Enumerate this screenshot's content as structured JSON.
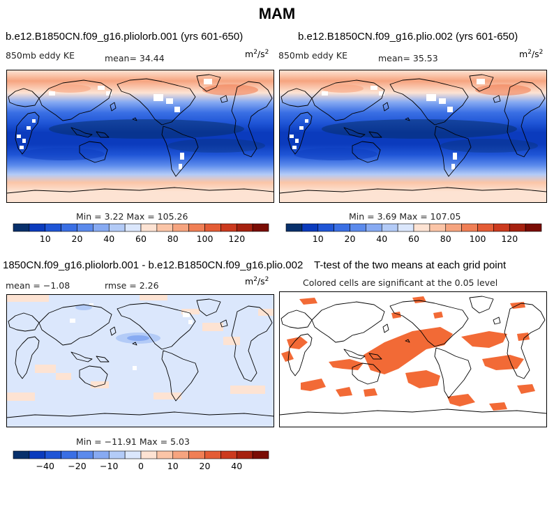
{
  "title": "MAM",
  "colors": {
    "ke_scale": [
      "#08306b",
      "#0b3bbd",
      "#1f55d6",
      "#3a6fe4",
      "#5b8aec",
      "#87aaf2",
      "#b3cbf7",
      "#dbe7fc",
      "#fde3d3",
      "#fbc5a7",
      "#f6a47f",
      "#f07f55",
      "#e45c35",
      "#cc3a1e",
      "#a6210f",
      "#7a0c04"
    ],
    "diff_scale": [
      "#08306b",
      "#0b3bbd",
      "#1f55d6",
      "#3a6fe4",
      "#5b8aec",
      "#87aaf2",
      "#b3cbf7",
      "#dbe7fc",
      "#fde3d3",
      "#fbc5a7",
      "#f6a47f",
      "#f07f55",
      "#e45c35",
      "#cc3a1e",
      "#a6210f",
      "#7a0c04"
    ],
    "ttest": "#f26a36",
    "land_blank": "#ffffff"
  },
  "panels": {
    "p1": {
      "title": "b.e12.B1850CN.f09_g16.pliolorb.001 (yrs 601-650)",
      "left": "850mb eddy KE",
      "center": "mean=  34.44",
      "units_base": "m",
      "units_exp1": "2",
      "units_mid": "/s",
      "units_exp2": "2",
      "stats": "Min =   3.22 Max = 105.26"
    },
    "p2": {
      "title": "b.e12.B1850CN.f09_g16.plio.002 (yrs 601-650)",
      "left": "850mb eddy KE",
      "center": "mean=  35.53",
      "units_base": "m",
      "units_exp1": "2",
      "units_mid": "/s",
      "units_exp2": "2",
      "stats": "Min =   3.69 Max = 107.05"
    },
    "p3": {
      "title": "1850CN.f09_g16.pliolorb.001 - b.e12.B1850CN.f09_g16.plio.002",
      "left": "mean =  −1.08",
      "center": "rmse =   2.26",
      "units_base": "m",
      "units_exp1": "2",
      "units_mid": "/s",
      "units_exp2": "2",
      "stats": "Min = −11.91 Max =   5.03"
    },
    "p4": {
      "title": "T-test of the two means at each grid point",
      "subtitle": "Colored cells are significant at the 0.05 level"
    }
  },
  "chart_data": [
    {
      "type": "heatmap",
      "title": "b.e12.B1850CN.f09_g16.pliolorb.001 (yrs 601-650)",
      "variable": "850mb eddy KE",
      "units": "m2/s2",
      "mean": 34.44,
      "min": 3.22,
      "max": 105.26,
      "colorbar_ticks": [
        "10",
        "20",
        "40",
        "60",
        "80",
        "100",
        "120"
      ]
    },
    {
      "type": "heatmap",
      "title": "b.e12.B1850CN.f09_g16.plio.002 (yrs 601-650)",
      "variable": "850mb eddy KE",
      "units": "m2/s2",
      "mean": 35.53,
      "min": 3.69,
      "max": 107.05,
      "colorbar_ticks": [
        "10",
        "20",
        "40",
        "60",
        "80",
        "100",
        "120"
      ]
    },
    {
      "type": "heatmap",
      "title": "1850CN.f09_g16.pliolorb.001 - b.e12.B1850CN.f09_g16.plio.002",
      "units": "m2/s2",
      "mean": -1.08,
      "rmse": 2.26,
      "min": -11.91,
      "max": 5.03,
      "colorbar_ticks": [
        "−40",
        "−20",
        "−10",
        "0",
        "10",
        "20",
        "40"
      ]
    },
    {
      "type": "heatmap",
      "title": "T-test of the two means at each grid point",
      "subtitle": "Colored cells are significant at the 0.05 level"
    }
  ]
}
